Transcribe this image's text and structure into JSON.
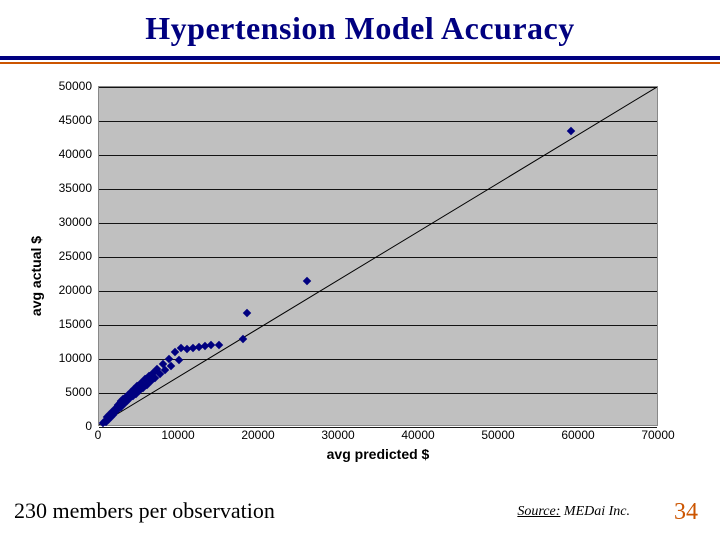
{
  "title": "Hypertension Model Accuracy",
  "chart": {
    "type": "scatter",
    "xlabel": "avg predicted $",
    "ylabel": "avg actual $",
    "xlim": [
      0,
      70000
    ],
    "ylim": [
      0,
      50000
    ],
    "xtick_step": 10000,
    "ytick_step": 5000,
    "xticks": [
      0,
      10000,
      20000,
      30000,
      40000,
      50000,
      60000,
      70000
    ],
    "yticks": [
      0,
      5000,
      10000,
      15000,
      20000,
      25000,
      30000,
      35000,
      40000,
      45000,
      50000
    ],
    "background_color": "#c0c0c0",
    "grid_color": "#000000",
    "border_color": "#888888",
    "point_color": "#000080",
    "point_marker": "diamond",
    "point_size": 6,
    "trend_line": {
      "color": "#000000",
      "width": 1,
      "x1": 0,
      "y1": 0,
      "x2": 70000,
      "y2": 50000
    },
    "tick_fontsize": 12,
    "label_fontsize": 14,
    "points": [
      [
        500,
        600
      ],
      [
        700,
        900
      ],
      [
        900,
        800
      ],
      [
        1000,
        1400
      ],
      [
        1100,
        1000
      ],
      [
        1200,
        1700
      ],
      [
        1300,
        1200
      ],
      [
        1400,
        1900
      ],
      [
        1500,
        1500
      ],
      [
        1600,
        2200
      ],
      [
        1700,
        1700
      ],
      [
        1800,
        2400
      ],
      [
        1900,
        2000
      ],
      [
        2000,
        2700
      ],
      [
        2100,
        2300
      ],
      [
        2200,
        3000
      ],
      [
        2300,
        2500
      ],
      [
        2400,
        3200
      ],
      [
        2500,
        2800
      ],
      [
        2600,
        3500
      ],
      [
        2700,
        3000
      ],
      [
        2800,
        3800
      ],
      [
        2900,
        3200
      ],
      [
        3000,
        4100
      ],
      [
        3200,
        3500
      ],
      [
        3400,
        4400
      ],
      [
        3500,
        3800
      ],
      [
        3600,
        4700
      ],
      [
        3800,
        4100
      ],
      [
        4000,
        5200
      ],
      [
        4200,
        4500
      ],
      [
        4400,
        5600
      ],
      [
        4600,
        4900
      ],
      [
        4800,
        6100
      ],
      [
        5000,
        5300
      ],
      [
        5200,
        6500
      ],
      [
        5500,
        5800
      ],
      [
        5800,
        7000
      ],
      [
        6000,
        6200
      ],
      [
        6300,
        7500
      ],
      [
        6500,
        6700
      ],
      [
        6800,
        8000
      ],
      [
        7000,
        7200
      ],
      [
        7300,
        8500
      ],
      [
        7600,
        7800
      ],
      [
        8000,
        9200
      ],
      [
        8300,
        8400
      ],
      [
        8700,
        10000
      ],
      [
        9000,
        9000
      ],
      [
        9500,
        11000
      ],
      [
        10000,
        9800
      ],
      [
        10200,
        11600
      ],
      [
        11000,
        11400
      ],
      [
        11800,
        11600
      ],
      [
        12500,
        11800
      ],
      [
        13200,
        11900
      ],
      [
        14000,
        12000
      ],
      [
        15000,
        12100
      ],
      [
        18000,
        13000
      ],
      [
        18500,
        16700
      ],
      [
        26000,
        21500
      ],
      [
        59000,
        43500
      ]
    ]
  },
  "footer": {
    "left": "230 members per observation",
    "source_label": "Source:",
    "source_name": " MEDai Inc.",
    "page": "34"
  },
  "colors": {
    "title": "#000080",
    "rule1": "#000080",
    "rule2": "#cc5500",
    "page": "#cc5500"
  }
}
